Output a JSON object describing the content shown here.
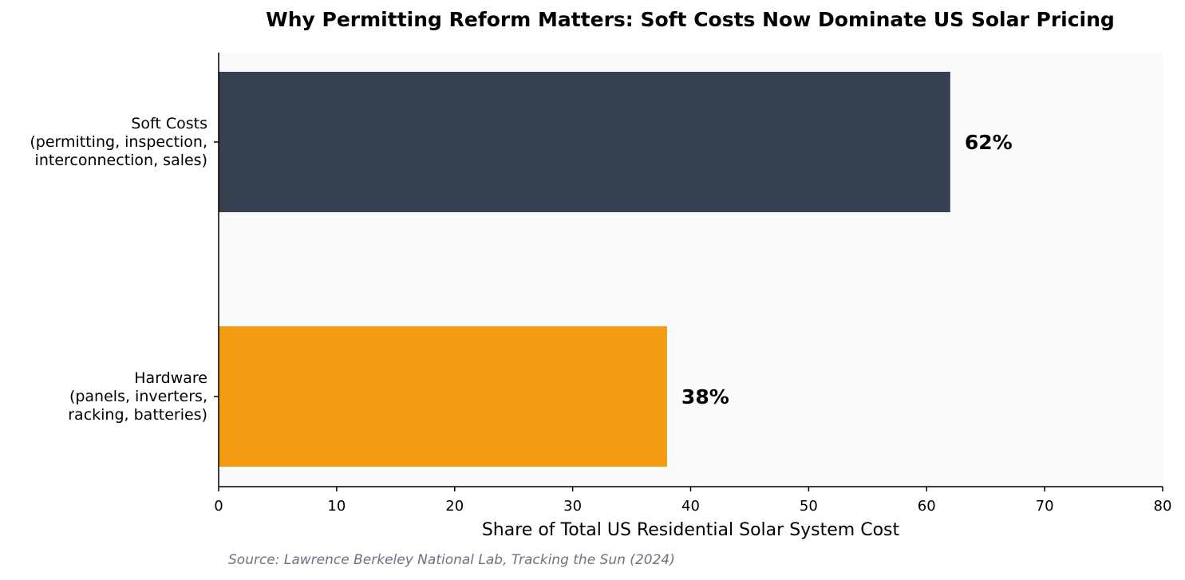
{
  "chart_data": {
    "type": "bar",
    "orientation": "horizontal",
    "title": "Why Permitting Reform Matters: Soft Costs Now Dominate US Solar Pricing",
    "xlabel": "Share of Total US Residential Solar System Cost",
    "ylabel": "",
    "xlim": [
      0,
      80
    ],
    "xticks": [
      "0",
      "10",
      "20",
      "30",
      "40",
      "50",
      "60",
      "70",
      "80"
    ],
    "grid": false,
    "categories": [
      "Soft Costs\n(permitting, inspection,\ninterconnection, sales)",
      "Hardware\n(panels, inverters,\nracking, batteries)"
    ],
    "values": [
      62,
      38
    ],
    "data_labels": [
      "62%",
      "38%"
    ],
    "colors": [
      "#374151",
      "#f39c12"
    ],
    "plot_background": "#f8fafc",
    "source": "Source: Lawrence Berkeley National Lab, Tracking the Sun (2024)"
  }
}
